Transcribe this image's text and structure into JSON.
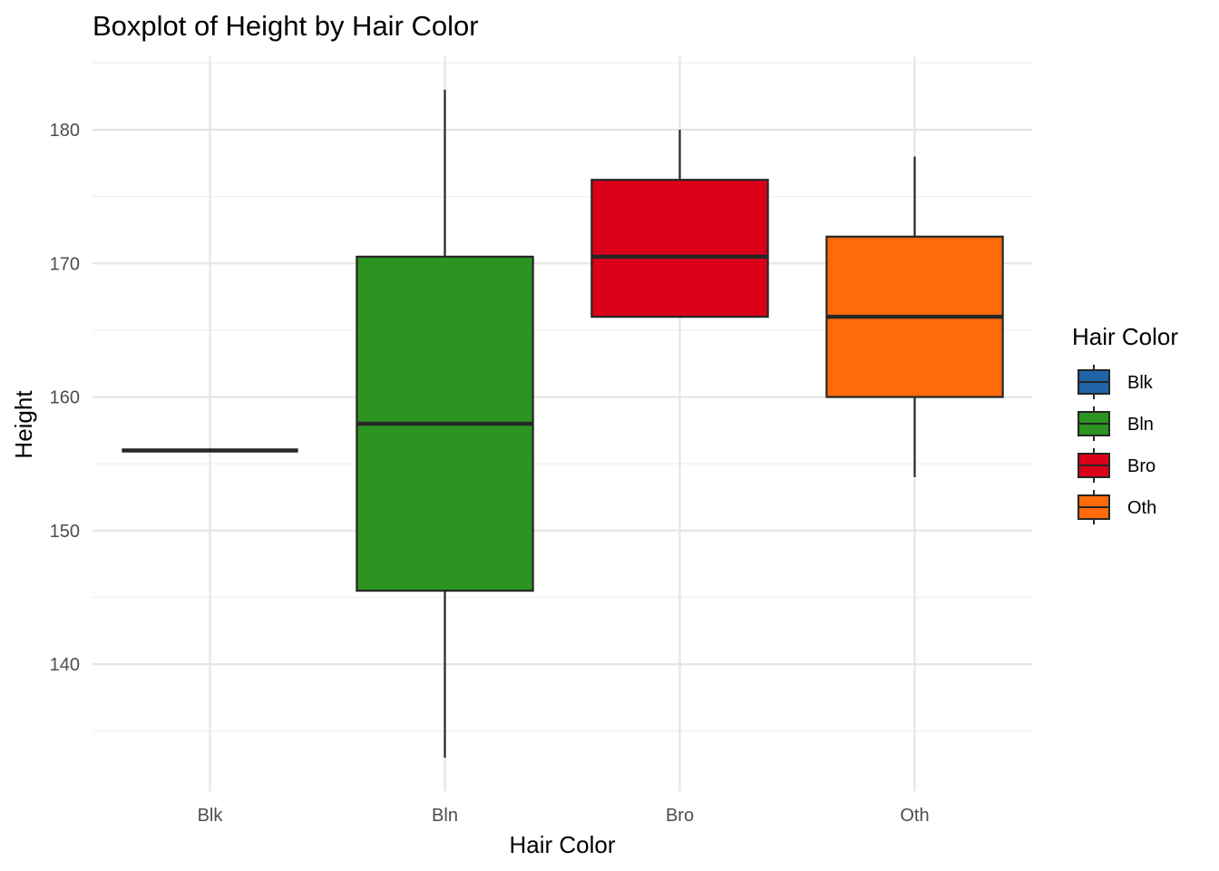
{
  "chart_data": {
    "type": "boxplot",
    "title": "Boxplot of Height by Hair Color",
    "xlabel": "Hair Color",
    "ylabel": "Height",
    "categories": [
      "Blk",
      "Bln",
      "Bro",
      "Oth"
    ],
    "ylim": [
      130.5,
      185.5
    ],
    "yticks": [
      140,
      150,
      160,
      170,
      180
    ],
    "grid": true,
    "legend": {
      "title": "Hair Color",
      "position": "right",
      "entries": [
        "Blk",
        "Bln",
        "Bro",
        "Oth"
      ]
    },
    "series": [
      {
        "name": "Blk",
        "color": "#1f65a8",
        "min": 156,
        "q1": 156,
        "median": 156,
        "q3": 156,
        "max": 156
      },
      {
        "name": "Bln",
        "color": "#2c9421",
        "min": 133,
        "q1": 145.5,
        "median": 158,
        "q3": 170.5,
        "max": 183
      },
      {
        "name": "Bro",
        "color": "#db001a",
        "min": 166,
        "q1": 166,
        "median": 170.5,
        "q3": 176.25,
        "max": 180
      },
      {
        "name": "Oth",
        "color": "#ff6b0a",
        "min": 154,
        "q1": 160,
        "median": 166,
        "q3": 172,
        "max": 178
      }
    ]
  }
}
